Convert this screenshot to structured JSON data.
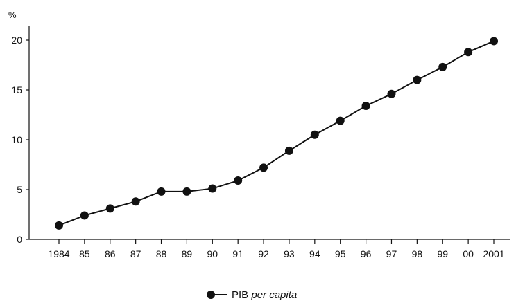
{
  "chart_data": {
    "type": "line",
    "y_unit": "%",
    "ylim": [
      0,
      21
    ],
    "yticks": [
      0,
      5,
      10,
      15,
      20
    ],
    "categories": [
      "1984",
      "85",
      "86",
      "87",
      "88",
      "89",
      "90",
      "91",
      "92",
      "93",
      "94",
      "95",
      "96",
      "97",
      "98",
      "99",
      "00",
      "2001"
    ],
    "series": [
      {
        "name": "PIB per capita",
        "color": "#111111",
        "marker": "filled-circle",
        "values": [
          1.4,
          2.4,
          3.1,
          3.8,
          4.8,
          4.8,
          5.1,
          5.9,
          7.2,
          8.9,
          10.5,
          11.9,
          13.4,
          14.6,
          16.0,
          17.3,
          18.8,
          19.9
        ]
      }
    ],
    "legend": {
      "position": "bottom-center",
      "label_normal": "PIB ",
      "label_italic": "per capita"
    },
    "grid": false
  }
}
